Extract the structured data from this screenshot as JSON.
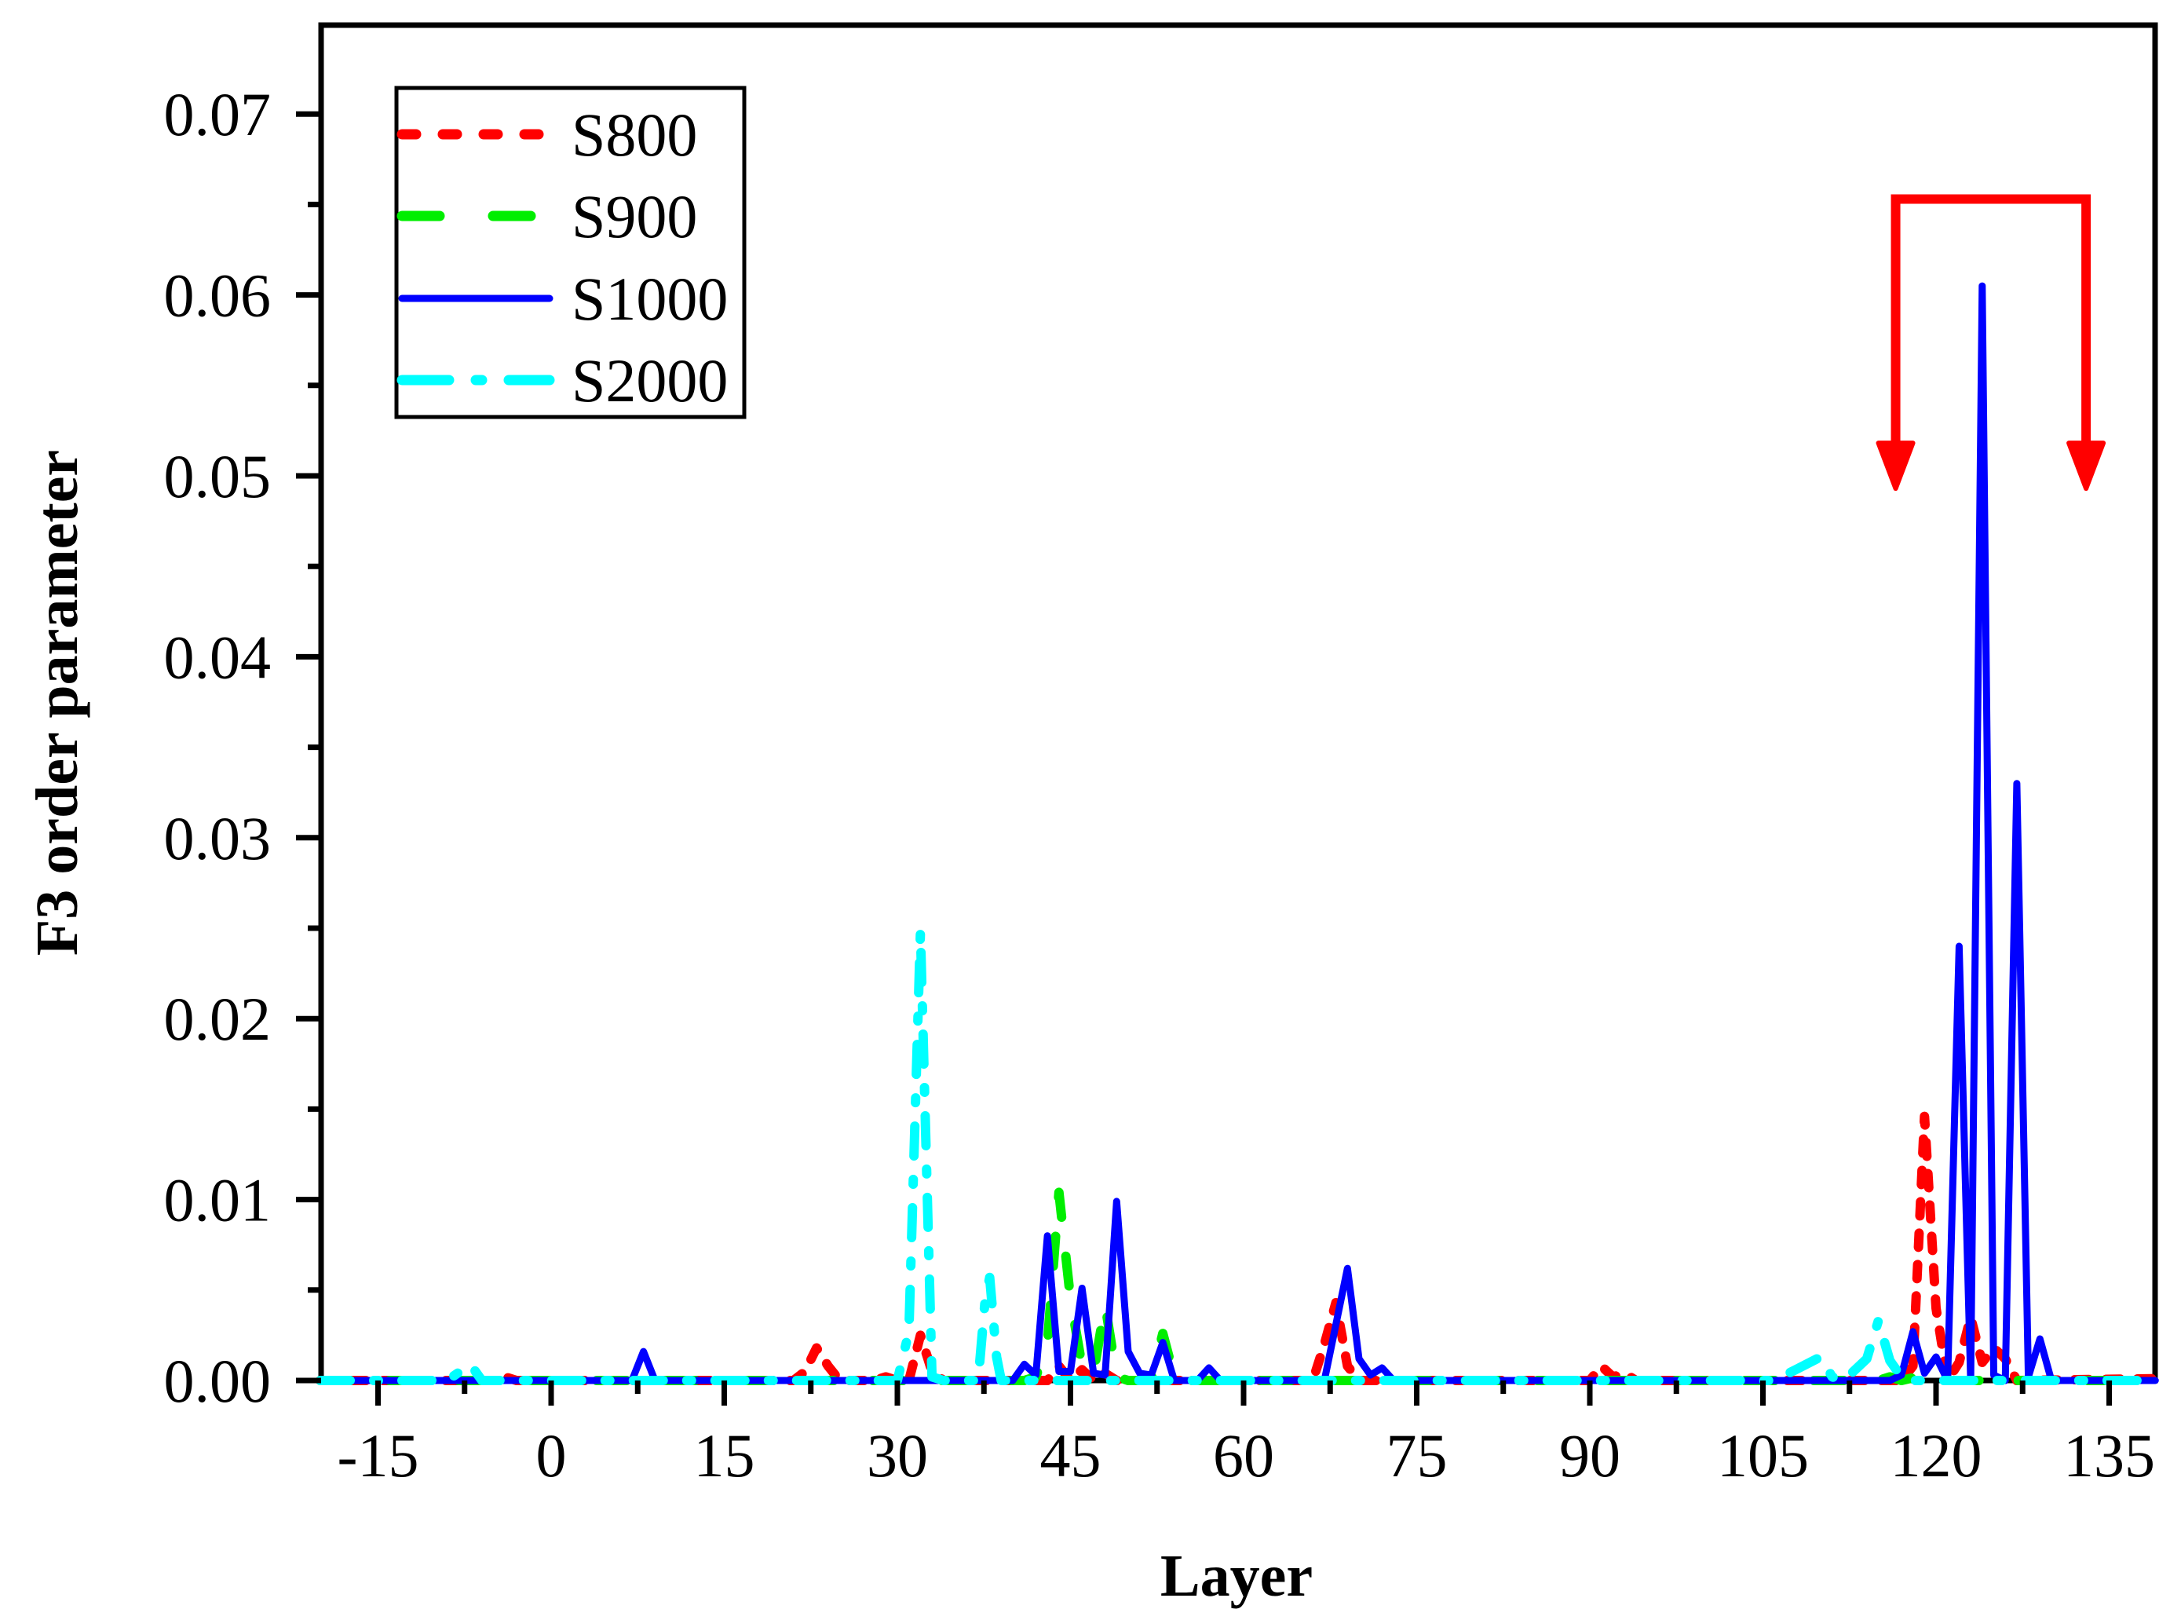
{
  "chart_data": {
    "type": "line",
    "title": "",
    "xlabel": "Layer",
    "ylabel": "F3 order parameter",
    "xlim": [
      -20,
      139
    ],
    "ylim": [
      0.0,
      0.075
    ],
    "x_ticks": [
      -15,
      0,
      15,
      30,
      45,
      60,
      75,
      90,
      105,
      120,
      135
    ],
    "x_tick_labels": [
      "-15",
      "0",
      "15",
      "30",
      "45",
      "60",
      "75",
      "90",
      "105",
      "120",
      "135"
    ],
    "y_ticks": [
      0.0,
      0.01,
      0.02,
      0.03,
      0.04,
      0.05,
      0.06,
      0.07
    ],
    "y_tick_labels": [
      "0.00",
      "0.01",
      "0.02",
      "0.03",
      "0.04",
      "0.05",
      "0.06",
      "0.07"
    ],
    "grid": false,
    "legend_position": "upper left",
    "series": [
      {
        "name": "S800",
        "color": "#ff0000",
        "dash": "short-dash",
        "points": [
          [
            -20,
            0
          ],
          [
            -5,
            0
          ],
          [
            -4,
            0.0002
          ],
          [
            -3,
            0
          ],
          [
            21,
            0
          ],
          [
            22,
            0.0005
          ],
          [
            23,
            0.0018
          ],
          [
            24,
            0.0008
          ],
          [
            25,
            0
          ],
          [
            28,
            0
          ],
          [
            29,
            0.0002
          ],
          [
            30,
            0
          ],
          [
            31,
            0
          ],
          [
            32,
            0.0025
          ],
          [
            33,
            0.0005
          ],
          [
            34,
            0
          ],
          [
            43,
            0
          ],
          [
            44,
            0.0008
          ],
          [
            45,
            0
          ],
          [
            46,
            0.0006
          ],
          [
            47,
            0
          ],
          [
            48,
            0.0004
          ],
          [
            49,
            0
          ],
          [
            66,
            0
          ],
          [
            67,
            0.002
          ],
          [
            68,
            0.0043
          ],
          [
            69,
            0.0008
          ],
          [
            70,
            0
          ],
          [
            90,
            0
          ],
          [
            91,
            0.0008
          ],
          [
            92,
            0.0002
          ],
          [
            93,
            0.0004
          ],
          [
            94,
            0
          ],
          [
            117,
            0
          ],
          [
            118,
            0.0008
          ],
          [
            119,
            0.0146
          ],
          [
            120,
            0.004
          ],
          [
            121,
            0
          ],
          [
            122,
            0.001
          ],
          [
            123,
            0.0035
          ],
          [
            124,
            0.001
          ],
          [
            125,
            0.0018
          ],
          [
            126,
            0.0012
          ],
          [
            127,
            0
          ],
          [
            139,
            0.0001
          ]
        ]
      },
      {
        "name": "S900",
        "color": "#00ee00",
        "dash": "long-dash",
        "points": [
          [
            -20,
            0
          ],
          [
            41,
            0
          ],
          [
            42,
            0.0002
          ],
          [
            43,
            0.002
          ],
          [
            44,
            0.0104
          ],
          [
            45,
            0.0045
          ],
          [
            46,
            0.0008
          ],
          [
            47,
            0.0004
          ],
          [
            48,
            0.0042
          ],
          [
            49,
            0.0002
          ],
          [
            50,
            0
          ],
          [
            52,
            0
          ],
          [
            53,
            0.0026
          ],
          [
            54,
            0.0002
          ],
          [
            55,
            0
          ],
          [
            115,
            0
          ],
          [
            116,
            0.0002
          ],
          [
            117,
            0
          ],
          [
            119,
            0.0003
          ],
          [
            120,
            0
          ],
          [
            139,
            0
          ]
        ]
      },
      {
        "name": "S1000",
        "color": "#0000ff",
        "dash": "solid",
        "points": [
          [
            -20,
            0
          ],
          [
            7,
            0
          ],
          [
            8,
            0.0016
          ],
          [
            9,
            0
          ],
          [
            39,
            0
          ],
          [
            40,
            0
          ],
          [
            41,
            0.0009
          ],
          [
            42,
            0.0003
          ],
          [
            43,
            0.008
          ],
          [
            44,
            0.0005
          ],
          [
            45,
            0.0005
          ],
          [
            46,
            0.0051
          ],
          [
            47,
            0.0004
          ],
          [
            48,
            0.0003
          ],
          [
            49,
            0.0099
          ],
          [
            50,
            0.0016
          ],
          [
            51,
            0.0004
          ],
          [
            52,
            0.0003
          ],
          [
            53,
            0.0021
          ],
          [
            54,
            0
          ],
          [
            56,
            0
          ],
          [
            57,
            0.0007
          ],
          [
            58,
            0
          ],
          [
            67,
            0
          ],
          [
            68,
            0.0031
          ],
          [
            69,
            0.0062
          ],
          [
            70,
            0.0012
          ],
          [
            71,
            0.0003
          ],
          [
            72,
            0.0007
          ],
          [
            73,
            0
          ],
          [
            116,
            0
          ],
          [
            117,
            0.0003
          ],
          [
            118,
            0.0027
          ],
          [
            119,
            0.0004
          ],
          [
            120,
            0.0013
          ],
          [
            121,
            0
          ],
          [
            122,
            0.024
          ],
          [
            123,
            0
          ],
          [
            124,
            0.0605
          ],
          [
            125,
            0.0003
          ],
          [
            126,
            0
          ],
          [
            127,
            0.033
          ],
          [
            128,
            0.0002
          ],
          [
            129,
            0.0023
          ],
          [
            130,
            0
          ],
          [
            139,
            0
          ]
        ]
      },
      {
        "name": "S2000",
        "color": "#00ffff",
        "dash": "dash-dot",
        "points": [
          [
            -20,
            0
          ],
          [
            -9,
            0
          ],
          [
            -7,
            0.0009
          ],
          [
            -6,
            0
          ],
          [
            30,
            0
          ],
          [
            31,
            0.0027
          ],
          [
            32,
            0.0248
          ],
          [
            33,
            0.0002
          ],
          [
            34,
            0
          ],
          [
            37,
            0
          ],
          [
            37.6,
            0.0044
          ],
          [
            38,
            0.0057
          ],
          [
            38.6,
            0.0013
          ],
          [
            39,
            0
          ],
          [
            106,
            0
          ],
          [
            110,
            0.0013
          ],
          [
            111,
            0.0002
          ],
          [
            112,
            0
          ],
          [
            114,
            0.0012
          ],
          [
            115,
            0.0033
          ],
          [
            116,
            0.0011
          ],
          [
            117,
            0.0002
          ],
          [
            118,
            0
          ],
          [
            139,
            0
          ]
        ]
      }
    ],
    "annotations": [
      {
        "type": "bracket-arrow",
        "color": "#ff0000",
        "from_x": 116.5,
        "to_x": 133,
        "top_y": 0.0653,
        "tip_y": 0.0493,
        "description": "two downward arrows joined by a horizontal bar above the S1000 peaks"
      }
    ]
  },
  "legend": {
    "items": [
      {
        "label": "S800",
        "color": "#ff0000"
      },
      {
        "label": "S900",
        "color": "#00ee00"
      },
      {
        "label": "S1000",
        "color": "#0000ff"
      },
      {
        "label": "S2000",
        "color": "#00ffff"
      }
    ]
  },
  "axes": {
    "xlabel": "Layer",
    "ylabel": "F3 order parameter"
  }
}
